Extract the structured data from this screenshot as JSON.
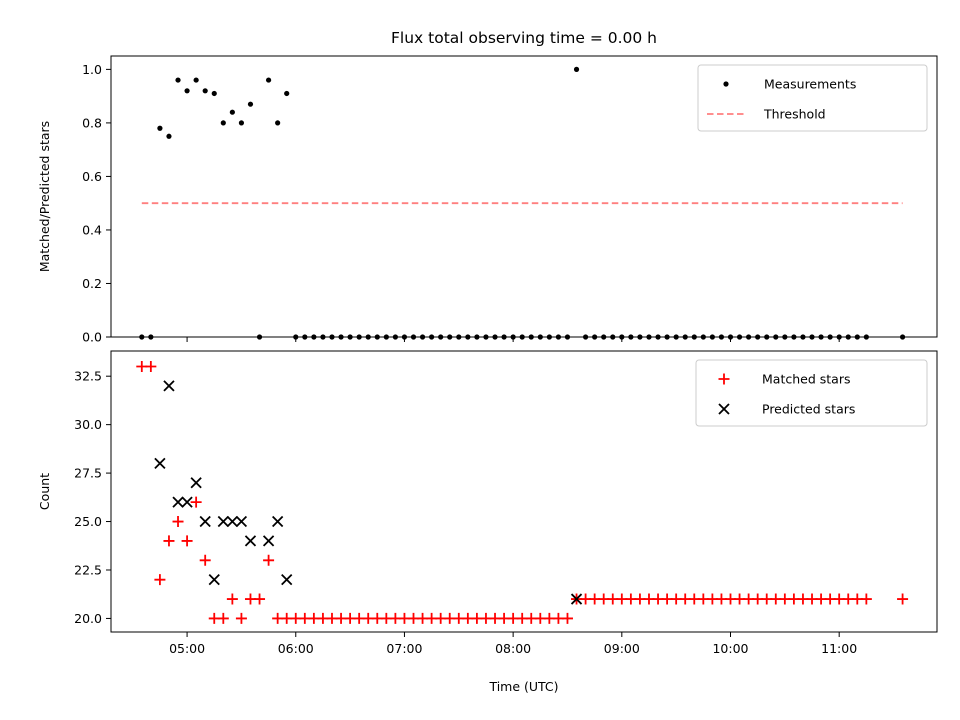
{
  "chart_data": [
    {
      "type": "scatter",
      "title": "Flux total observing time = 0.00 h",
      "xlabel": "",
      "ylabel": "Matched/Predicted stars",
      "xlim": [
        "04:18",
        "11:54"
      ],
      "ylim": [
        0,
        1.05
      ],
      "yticks": [
        "0.0",
        "0.2",
        "0.4",
        "0.6",
        "0.8",
        "1.0"
      ],
      "xticks": [
        "05:00",
        "06:00",
        "07:00",
        "08:00",
        "09:00",
        "10:00",
        "11:00"
      ],
      "legend_placement": "top-right",
      "grid": false,
      "series": [
        {
          "name": "Measurements",
          "kind": "scatter",
          "color": "#000000",
          "points": [
            [
              "04:35",
              0
            ],
            [
              "04:40",
              0
            ],
            [
              "04:45",
              0.78
            ],
            [
              "04:50",
              0.75
            ],
            [
              "04:55",
              0.96
            ],
            [
              "05:00",
              0.92
            ],
            [
              "05:05",
              0.96
            ],
            [
              "05:10",
              0.92
            ],
            [
              "05:15",
              0.91
            ],
            [
              "05:20",
              0.8
            ],
            [
              "05:25",
              0.84
            ],
            [
              "05:30",
              0.8
            ],
            [
              "05:35",
              0.87
            ],
            [
              "05:40",
              0
            ],
            [
              "05:45",
              0.96
            ],
            [
              "05:50",
              0.8
            ],
            [
              "05:55",
              0.91
            ],
            [
              "06:00",
              0
            ],
            [
              "06:05",
              0
            ],
            [
              "06:10",
              0
            ],
            [
              "06:15",
              0
            ],
            [
              "06:20",
              0
            ],
            [
              "06:25",
              0
            ],
            [
              "06:30",
              0
            ],
            [
              "06:35",
              0
            ],
            [
              "06:40",
              0
            ],
            [
              "06:45",
              0
            ],
            [
              "06:50",
              0
            ],
            [
              "06:55",
              0
            ],
            [
              "07:00",
              0
            ],
            [
              "07:05",
              0
            ],
            [
              "07:10",
              0
            ],
            [
              "07:15",
              0
            ],
            [
              "07:20",
              0
            ],
            [
              "07:25",
              0
            ],
            [
              "07:30",
              0
            ],
            [
              "07:35",
              0
            ],
            [
              "07:40",
              0
            ],
            [
              "07:45",
              0
            ],
            [
              "07:50",
              0
            ],
            [
              "07:55",
              0
            ],
            [
              "08:00",
              0
            ],
            [
              "08:05",
              0
            ],
            [
              "08:10",
              0
            ],
            [
              "08:15",
              0
            ],
            [
              "08:20",
              0
            ],
            [
              "08:25",
              0
            ],
            [
              "08:30",
              0
            ],
            [
              "08:35",
              1.0
            ],
            [
              "08:40",
              0
            ],
            [
              "08:45",
              0
            ],
            [
              "08:50",
              0
            ],
            [
              "08:55",
              0
            ],
            [
              "09:00",
              0
            ],
            [
              "09:05",
              0
            ],
            [
              "09:10",
              0
            ],
            [
              "09:15",
              0
            ],
            [
              "09:20",
              0
            ],
            [
              "09:25",
              0
            ],
            [
              "09:30",
              0
            ],
            [
              "09:35",
              0
            ],
            [
              "09:40",
              0
            ],
            [
              "09:45",
              0
            ],
            [
              "09:50",
              0
            ],
            [
              "09:55",
              0
            ],
            [
              "10:00",
              0
            ],
            [
              "10:05",
              0
            ],
            [
              "10:10",
              0
            ],
            [
              "10:15",
              0
            ],
            [
              "10:20",
              0
            ],
            [
              "10:25",
              0
            ],
            [
              "10:30",
              0
            ],
            [
              "10:35",
              0
            ],
            [
              "10:40",
              0
            ],
            [
              "10:45",
              0
            ],
            [
              "10:50",
              0
            ],
            [
              "10:55",
              0
            ],
            [
              "11:00",
              0
            ],
            [
              "11:05",
              0
            ],
            [
              "11:10",
              0
            ],
            [
              "11:15",
              0
            ],
            [
              "11:35",
              0
            ]
          ]
        },
        {
          "name": "Threshold",
          "kind": "dashed-line",
          "color": "#ff7f7f",
          "points": [
            [
              "04:35",
              0.5
            ],
            [
              "11:35",
              0.5
            ]
          ]
        }
      ]
    },
    {
      "type": "scatter",
      "title": "",
      "xlabel": "Time (UTC)",
      "ylabel": "Count",
      "xlim": [
        "04:18",
        "11:54"
      ],
      "ylim": [
        19.3,
        33.8
      ],
      "yticks": [
        "20.0",
        "22.5",
        "25.0",
        "27.5",
        "30.0",
        "32.5"
      ],
      "xticks": [
        "05:00",
        "06:00",
        "07:00",
        "08:00",
        "09:00",
        "10:00",
        "11:00"
      ],
      "legend_placement": "top-right",
      "grid": false,
      "series": [
        {
          "name": "Matched stars",
          "kind": "plus",
          "color": "#ff0000",
          "points": [
            [
              "04:35",
              33
            ],
            [
              "04:40",
              33
            ],
            [
              "04:45",
              22
            ],
            [
              "04:50",
              24
            ],
            [
              "04:55",
              25
            ],
            [
              "05:00",
              24
            ],
            [
              "05:05",
              26
            ],
            [
              "05:10",
              23
            ],
            [
              "05:15",
              20
            ],
            [
              "05:20",
              20
            ],
            [
              "05:25",
              21
            ],
            [
              "05:30",
              20
            ],
            [
              "05:35",
              21
            ],
            [
              "05:40",
              21
            ],
            [
              "05:45",
              23
            ],
            [
              "05:50",
              20
            ],
            [
              "05:55",
              20
            ],
            [
              "06:00",
              20
            ],
            [
              "06:05",
              20
            ],
            [
              "06:10",
              20
            ],
            [
              "06:15",
              20
            ],
            [
              "06:20",
              20
            ],
            [
              "06:25",
              20
            ],
            [
              "06:30",
              20
            ],
            [
              "06:35",
              20
            ],
            [
              "06:40",
              20
            ],
            [
              "06:45",
              20
            ],
            [
              "06:50",
              20
            ],
            [
              "06:55",
              20
            ],
            [
              "07:00",
              20
            ],
            [
              "07:05",
              20
            ],
            [
              "07:10",
              20
            ],
            [
              "07:15",
              20
            ],
            [
              "07:20",
              20
            ],
            [
              "07:25",
              20
            ],
            [
              "07:30",
              20
            ],
            [
              "07:35",
              20
            ],
            [
              "07:40",
              20
            ],
            [
              "07:45",
              20
            ],
            [
              "07:50",
              20
            ],
            [
              "07:55",
              20
            ],
            [
              "08:00",
              20
            ],
            [
              "08:05",
              20
            ],
            [
              "08:10",
              20
            ],
            [
              "08:15",
              20
            ],
            [
              "08:20",
              20
            ],
            [
              "08:25",
              20
            ],
            [
              "08:30",
              20
            ],
            [
              "08:35",
              21
            ],
            [
              "08:40",
              21
            ],
            [
              "08:45",
              21
            ],
            [
              "08:50",
              21
            ],
            [
              "08:55",
              21
            ],
            [
              "09:00",
              21
            ],
            [
              "09:05",
              21
            ],
            [
              "09:10",
              21
            ],
            [
              "09:15",
              21
            ],
            [
              "09:20",
              21
            ],
            [
              "09:25",
              21
            ],
            [
              "09:30",
              21
            ],
            [
              "09:35",
              21
            ],
            [
              "09:40",
              21
            ],
            [
              "09:45",
              21
            ],
            [
              "09:50",
              21
            ],
            [
              "09:55",
              21
            ],
            [
              "10:00",
              21
            ],
            [
              "10:05",
              21
            ],
            [
              "10:10",
              21
            ],
            [
              "10:15",
              21
            ],
            [
              "10:20",
              21
            ],
            [
              "10:25",
              21
            ],
            [
              "10:30",
              21
            ],
            [
              "10:35",
              21
            ],
            [
              "10:40",
              21
            ],
            [
              "10:45",
              21
            ],
            [
              "10:50",
              21
            ],
            [
              "10:55",
              21
            ],
            [
              "11:00",
              21
            ],
            [
              "11:05",
              21
            ],
            [
              "11:10",
              21
            ],
            [
              "11:15",
              21
            ],
            [
              "11:35",
              21
            ]
          ]
        },
        {
          "name": "Predicted stars",
          "kind": "x",
          "color": "#000000",
          "points": [
            [
              "04:45",
              28
            ],
            [
              "04:50",
              32
            ],
            [
              "04:55",
              26
            ],
            [
              "05:00",
              26
            ],
            [
              "05:05",
              27
            ],
            [
              "05:10",
              25
            ],
            [
              "05:15",
              22
            ],
            [
              "05:20",
              25
            ],
            [
              "05:25",
              25
            ],
            [
              "05:30",
              25
            ],
            [
              "05:35",
              24
            ],
            [
              "05:45",
              24
            ],
            [
              "05:50",
              25
            ],
            [
              "05:55",
              22
            ],
            [
              "08:35",
              21
            ]
          ]
        }
      ]
    }
  ]
}
